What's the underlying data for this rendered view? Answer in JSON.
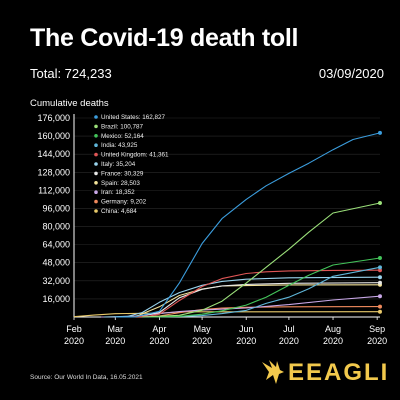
{
  "title": "The Covid-19 death toll",
  "total": "Total: 724,233",
  "date": "03/09/2020",
  "source": "Source: Our World In Data, 16.05.2021",
  "logo_text": "EEAGLI",
  "colors": {
    "background": "#000000",
    "axis": "#ffffff",
    "grid": "#2a2a2a",
    "logo": "#f2c94c"
  },
  "chart_data": {
    "type": "line",
    "ylabel": "Cumulative deaths",
    "xlabel": "",
    "ylim": [
      0,
      176000
    ],
    "yticks": [
      16000,
      32000,
      48000,
      64000,
      80000,
      96000,
      112000,
      128000,
      144000,
      160000,
      176000
    ],
    "ytick_labels": [
      "16,000",
      "32,000",
      "48,000",
      "64,000",
      "80,000",
      "96,000",
      "112,000",
      "128,000",
      "144,000",
      "160,000",
      "176,000"
    ],
    "x_range": [
      "2020-02-01",
      "2020-09-03"
    ],
    "xticks": [
      "2020-02-01",
      "2020-03-01",
      "2020-04-01",
      "2020-05-01",
      "2020-06-01",
      "2020-07-01",
      "2020-08-01",
      "2020-09-01"
    ],
    "xtick_labels": [
      [
        "Feb",
        "2020"
      ],
      [
        "Mar",
        "2020"
      ],
      [
        "Apr",
        "2020"
      ],
      [
        "May",
        "2020"
      ],
      [
        "Jun",
        "2020"
      ],
      [
        "Jul",
        "2020"
      ],
      [
        "Aug",
        "2020"
      ],
      [
        "Sep",
        "2020"
      ]
    ],
    "grid": "horizontal",
    "legend_position": "top-left",
    "series": [
      {
        "name": "United States",
        "label": "United States: 162,827",
        "color": "#3b9ddd",
        "points": [
          [
            "2020-03-01",
            0
          ],
          [
            "2020-03-15",
            100
          ],
          [
            "2020-04-01",
            5000
          ],
          [
            "2020-04-15",
            30000
          ],
          [
            "2020-05-01",
            65000
          ],
          [
            "2020-05-15",
            87000
          ],
          [
            "2020-06-01",
            104000
          ],
          [
            "2020-06-15",
            116000
          ],
          [
            "2020-07-01",
            127000
          ],
          [
            "2020-07-15",
            136000
          ],
          [
            "2020-08-01",
            148000
          ],
          [
            "2020-08-15",
            157000
          ],
          [
            "2020-09-03",
            162827
          ]
        ]
      },
      {
        "name": "Brazil",
        "label": "Brazil: 100,787",
        "color": "#9be07a",
        "points": [
          [
            "2020-03-20",
            0
          ],
          [
            "2020-04-15",
            1500
          ],
          [
            "2020-05-01",
            6000
          ],
          [
            "2020-05-15",
            14000
          ],
          [
            "2020-06-01",
            30000
          ],
          [
            "2020-06-15",
            44000
          ],
          [
            "2020-07-01",
            60000
          ],
          [
            "2020-07-15",
            75000
          ],
          [
            "2020-08-01",
            92000
          ],
          [
            "2020-09-03",
            100787
          ]
        ]
      },
      {
        "name": "Mexico",
        "label": "Mexico: 52,164",
        "color": "#43c45a",
        "points": [
          [
            "2020-03-25",
            0
          ],
          [
            "2020-04-15",
            500
          ],
          [
            "2020-05-01",
            2500
          ],
          [
            "2020-05-15",
            5500
          ],
          [
            "2020-06-01",
            10500
          ],
          [
            "2020-06-15",
            17500
          ],
          [
            "2020-07-01",
            28000
          ],
          [
            "2020-07-15",
            37000
          ],
          [
            "2020-08-01",
            46000
          ],
          [
            "2020-09-03",
            52164
          ]
        ]
      },
      {
        "name": "India",
        "label": "India: 43,925",
        "color": "#5fb6d9",
        "points": [
          [
            "2020-03-20",
            0
          ],
          [
            "2020-04-15",
            400
          ],
          [
            "2020-05-01",
            1200
          ],
          [
            "2020-05-15",
            3000
          ],
          [
            "2020-06-01",
            5800
          ],
          [
            "2020-06-15",
            12000
          ],
          [
            "2020-07-01",
            17500
          ],
          [
            "2020-07-15",
            25000
          ],
          [
            "2020-08-01",
            36000
          ],
          [
            "2020-09-03",
            43925
          ]
        ]
      },
      {
        "name": "United Kingdom",
        "label": "United Kingdom: 41,361",
        "color": "#e05656",
        "points": [
          [
            "2020-03-10",
            0
          ],
          [
            "2020-03-25",
            800
          ],
          [
            "2020-04-01",
            2500
          ],
          [
            "2020-04-15",
            14500
          ],
          [
            "2020-05-01",
            27000
          ],
          [
            "2020-05-15",
            34000
          ],
          [
            "2020-06-01",
            38500
          ],
          [
            "2020-06-15",
            40000
          ],
          [
            "2020-07-01",
            40800
          ],
          [
            "2020-08-01",
            41200
          ],
          [
            "2020-09-03",
            41361
          ]
        ]
      },
      {
        "name": "Italy",
        "label": "Italy: 35,204",
        "color": "#9ad4ee",
        "points": [
          [
            "2020-02-22",
            0
          ],
          [
            "2020-03-10",
            600
          ],
          [
            "2020-03-20",
            4000
          ],
          [
            "2020-04-01",
            13000
          ],
          [
            "2020-04-15",
            21600
          ],
          [
            "2020-05-01",
            28000
          ],
          [
            "2020-05-15",
            31500
          ],
          [
            "2020-06-01",
            33400
          ],
          [
            "2020-07-01",
            34700
          ],
          [
            "2020-09-03",
            35204
          ]
        ]
      },
      {
        "name": "France",
        "label": "France: 30,329",
        "color": "#e6e6e6",
        "points": [
          [
            "2020-03-01",
            0
          ],
          [
            "2020-03-15",
            90
          ],
          [
            "2020-04-01",
            4000
          ],
          [
            "2020-04-15",
            17000
          ],
          [
            "2020-05-01",
            24500
          ],
          [
            "2020-05-15",
            27500
          ],
          [
            "2020-06-01",
            28800
          ],
          [
            "2020-07-01",
            29800
          ],
          [
            "2020-09-03",
            30329
          ]
        ]
      },
      {
        "name": "Spain",
        "label": "Spain: 28,503",
        "color": "#f3e39a",
        "points": [
          [
            "2020-03-05",
            0
          ],
          [
            "2020-03-15",
            300
          ],
          [
            "2020-04-01",
            9000
          ],
          [
            "2020-04-15",
            19000
          ],
          [
            "2020-05-01",
            24800
          ],
          [
            "2020-05-15",
            27400
          ],
          [
            "2020-06-01",
            27800
          ],
          [
            "2020-07-01",
            28350
          ],
          [
            "2020-09-03",
            28503
          ]
        ]
      },
      {
        "name": "Iran",
        "label": "Iran: 18,352",
        "color": "#c9a8e8",
        "points": [
          [
            "2020-02-20",
            0
          ],
          [
            "2020-03-01",
            70
          ],
          [
            "2020-03-15",
            900
          ],
          [
            "2020-04-01",
            3000
          ],
          [
            "2020-04-15",
            4800
          ],
          [
            "2020-05-01",
            6100
          ],
          [
            "2020-06-01",
            8000
          ],
          [
            "2020-07-01",
            11000
          ],
          [
            "2020-08-01",
            15000
          ],
          [
            "2020-09-03",
            18352
          ]
        ]
      },
      {
        "name": "Germany",
        "label": "Germany: 9,202",
        "color": "#f08a5d",
        "points": [
          [
            "2020-03-08",
            0
          ],
          [
            "2020-03-25",
            200
          ],
          [
            "2020-04-01",
            900
          ],
          [
            "2020-04-15",
            3800
          ],
          [
            "2020-05-01",
            6600
          ],
          [
            "2020-05-15",
            7900
          ],
          [
            "2020-06-01",
            8600
          ],
          [
            "2020-07-01",
            9000
          ],
          [
            "2020-09-03",
            9202
          ]
        ]
      },
      {
        "name": "China",
        "label": "China: 4,684",
        "color": "#e8c96a",
        "points": [
          [
            "2020-02-01",
            300
          ],
          [
            "2020-02-15",
            1700
          ],
          [
            "2020-03-01",
            2900
          ],
          [
            "2020-03-15",
            3200
          ],
          [
            "2020-04-01",
            3320
          ],
          [
            "2020-04-17",
            4630
          ],
          [
            "2020-09-03",
            4684
          ]
        ]
      }
    ]
  }
}
